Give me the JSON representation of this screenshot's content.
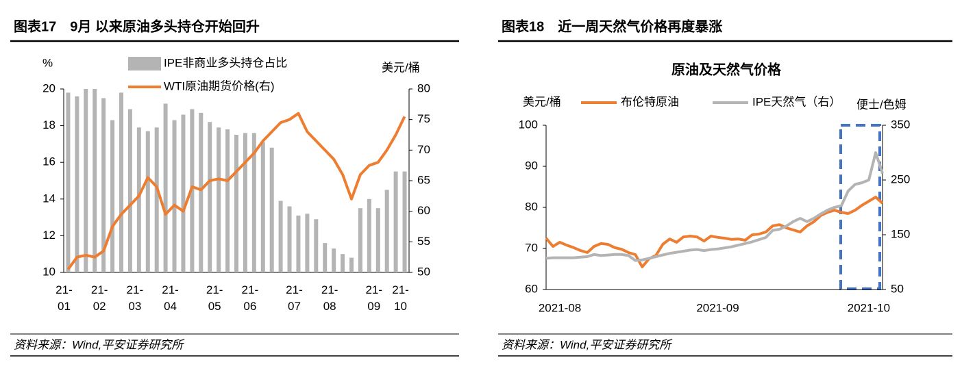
{
  "chart_data": [
    {
      "type": "combo",
      "figure": "图表17　9月 以来原油多头持仓开始回升",
      "source": "资料来源：Wind,平安证券研究所",
      "ylabel": "%",
      "y2label": "美元/桶",
      "categories": [
        "21-01",
        null,
        null,
        null,
        "21-02",
        null,
        null,
        null,
        "21-03",
        null,
        null,
        null,
        "21-04",
        null,
        null,
        null,
        null,
        "21-05",
        null,
        null,
        null,
        "21-06",
        null,
        null,
        null,
        null,
        "21-07",
        null,
        null,
        null,
        "21-08",
        null,
        null,
        null,
        null,
        "21-09",
        null,
        null,
        "21-10"
      ],
      "series": [
        {
          "name": "IPE非商业多头持仓占比",
          "type": "bar",
          "color": "#b4b4b4",
          "values": [
            19.8,
            19.6,
            20,
            20,
            19.5,
            18.3,
            19.8,
            18.9,
            17.9,
            17.7,
            17.9,
            19.2,
            18.3,
            18.6,
            18.9,
            18.7,
            18.2,
            17.9,
            17.8,
            17.5,
            17.6,
            17.6,
            17.1,
            16.8,
            13.9,
            13.6,
            13.1,
            13.2,
            12.9,
            11.6,
            11.3,
            11.0,
            10.8,
            13.5,
            14.0,
            13.5,
            14.5,
            15.5,
            15.5
          ]
        },
        {
          "name": "WTI原油期货价格(右)",
          "type": "line",
          "color": "#ed7d31",
          "axis": "y2",
          "values": [
            50.5,
            52.5,
            52.8,
            52.5,
            53.5,
            57.5,
            59.5,
            61,
            62.5,
            65.5,
            64,
            59.5,
            61,
            60,
            64,
            63.5,
            65,
            65.3,
            65,
            66.5,
            68,
            69.5,
            71.5,
            73,
            74.5,
            75,
            76,
            73,
            71.5,
            70,
            68.5,
            66,
            62,
            66,
            67.5,
            68,
            70,
            72.5,
            75.5
          ]
        }
      ],
      "ylim": [
        10,
        20
      ],
      "yticks": [
        10,
        12,
        14,
        16,
        18,
        20
      ],
      "y2lim": [
        50,
        80
      ],
      "y2ticks": [
        50,
        55,
        60,
        65,
        70,
        75,
        80
      ]
    },
    {
      "type": "line",
      "figure": "图表18　近一周天然气价格再度暴涨",
      "source": "资料来源：Wind,平安证券研究所",
      "title": "原油及天然气价格",
      "ylabel": "美元/桶",
      "y2label": "便士/色姆",
      "categories": [
        null,
        null,
        "2021-08",
        null,
        null,
        null,
        null,
        null,
        null,
        null,
        null,
        null,
        null,
        null,
        null,
        null,
        null,
        null,
        null,
        null,
        null,
        null,
        null,
        null,
        null,
        "2021-09",
        null,
        null,
        null,
        null,
        null,
        null,
        null,
        null,
        null,
        null,
        null,
        null,
        null,
        null,
        null,
        null,
        null,
        null,
        null,
        null,
        null,
        "2021-10",
        null,
        null
      ],
      "series": [
        {
          "name": "布伦特原油",
          "color": "#ed7d31",
          "values": [
            72.5,
            70.5,
            71.5,
            70.8,
            70.2,
            69.5,
            69,
            70.5,
            71.2,
            71,
            70.2,
            69.8,
            69,
            68.5,
            65.5,
            67.5,
            68.3,
            71,
            72.3,
            71.5,
            72.8,
            73,
            72.8,
            71.8,
            73,
            72.7,
            72.5,
            72.2,
            72.3,
            72,
            73.3,
            73.5,
            74,
            75.5,
            75.8,
            75,
            74.5,
            74,
            75.5,
            76.5,
            78,
            78.8,
            79.3,
            78.8,
            78.5,
            79.3,
            80.5,
            81.5,
            82.5,
            81
          ]
        },
        {
          "name": "IPE天然气（右）",
          "color": "#b4b4b4",
          "axis": "y2",
          "values": [
            107,
            108,
            108,
            108,
            108,
            109,
            110,
            114,
            112,
            113,
            114,
            114,
            112,
            103,
            104,
            107,
            110,
            113,
            116,
            118,
            120,
            122,
            123,
            121,
            123,
            124,
            126,
            128,
            131,
            134,
            137,
            141,
            145,
            158,
            160,
            166,
            174,
            180,
            174,
            180,
            188,
            195,
            200,
            203,
            230,
            242,
            245,
            250,
            300,
            262
          ]
        }
      ],
      "ylim": [
        60,
        100
      ],
      "yticks": [
        60,
        70,
        80,
        90,
        100
      ],
      "y2lim": [
        50,
        350
      ],
      "y2ticks": [
        50,
        150,
        250,
        350
      ]
    }
  ]
}
